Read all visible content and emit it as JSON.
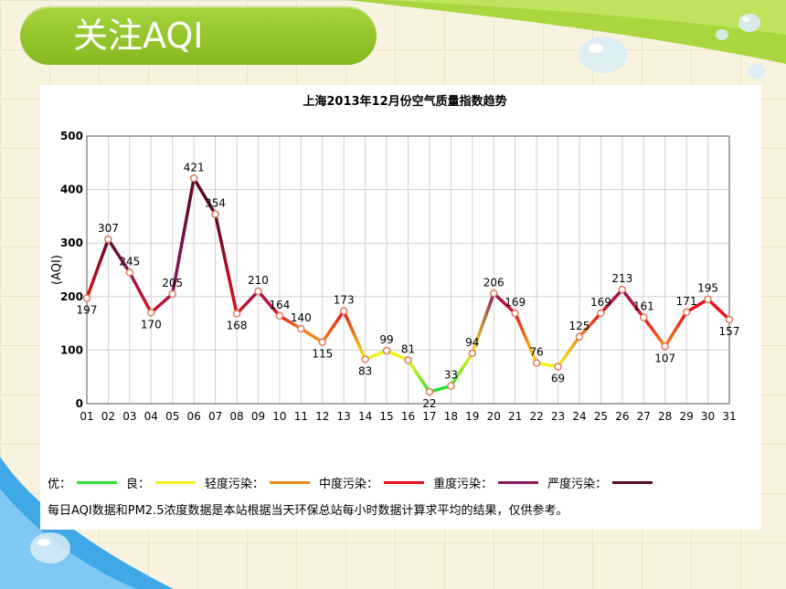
{
  "slide": {
    "title": "关注AQI"
  },
  "chart_data": {
    "type": "line",
    "title": "上海2013年12月份空气质量指数趋势",
    "ylabel": "(AQI)",
    "xlabel": "",
    "categories": [
      "01",
      "02",
      "03",
      "04",
      "05",
      "06",
      "07",
      "08",
      "09",
      "10",
      "11",
      "12",
      "13",
      "14",
      "15",
      "16",
      "17",
      "18",
      "19",
      "20",
      "21",
      "22",
      "23",
      "24",
      "25",
      "26",
      "27",
      "28",
      "29",
      "30",
      "31"
    ],
    "series": [
      {
        "values": [
          197,
          307,
          245,
          170,
          205,
          421,
          354,
          168,
          210,
          164,
          140,
          115,
          173,
          83,
          99,
          81,
          22,
          33,
          94,
          206,
          169,
          76,
          69,
          125,
          169,
          213,
          161,
          107,
          171,
          195,
          157
        ]
      }
    ],
    "ylim": [
      0,
      500
    ],
    "yticks": [
      0,
      100,
      200,
      300,
      400,
      500
    ],
    "grid": true,
    "legend_position": "bottom",
    "level_colors": [
      "#2ee02e",
      "#f2f21a",
      "#f08a1c",
      "#e8101c",
      "#8a1a5c",
      "#5a0a2a"
    ]
  },
  "legend": [
    {
      "label": "优：",
      "color": "#2ee02e"
    },
    {
      "label": "良：",
      "color": "#f2f21a"
    },
    {
      "label": "轻度污染：",
      "color": "#f08a1c"
    },
    {
      "label": "中度污染：",
      "color": "#e8101c"
    },
    {
      "label": "重度污染：",
      "color": "#8a1a5c"
    },
    {
      "label": "严度污染：",
      "color": "#5a0a2a"
    }
  ],
  "note": "每日AQI数据和PM2.5浓度数据是本站根据当天环保总站每小时数据计算求平均的结果，仅供参考。"
}
